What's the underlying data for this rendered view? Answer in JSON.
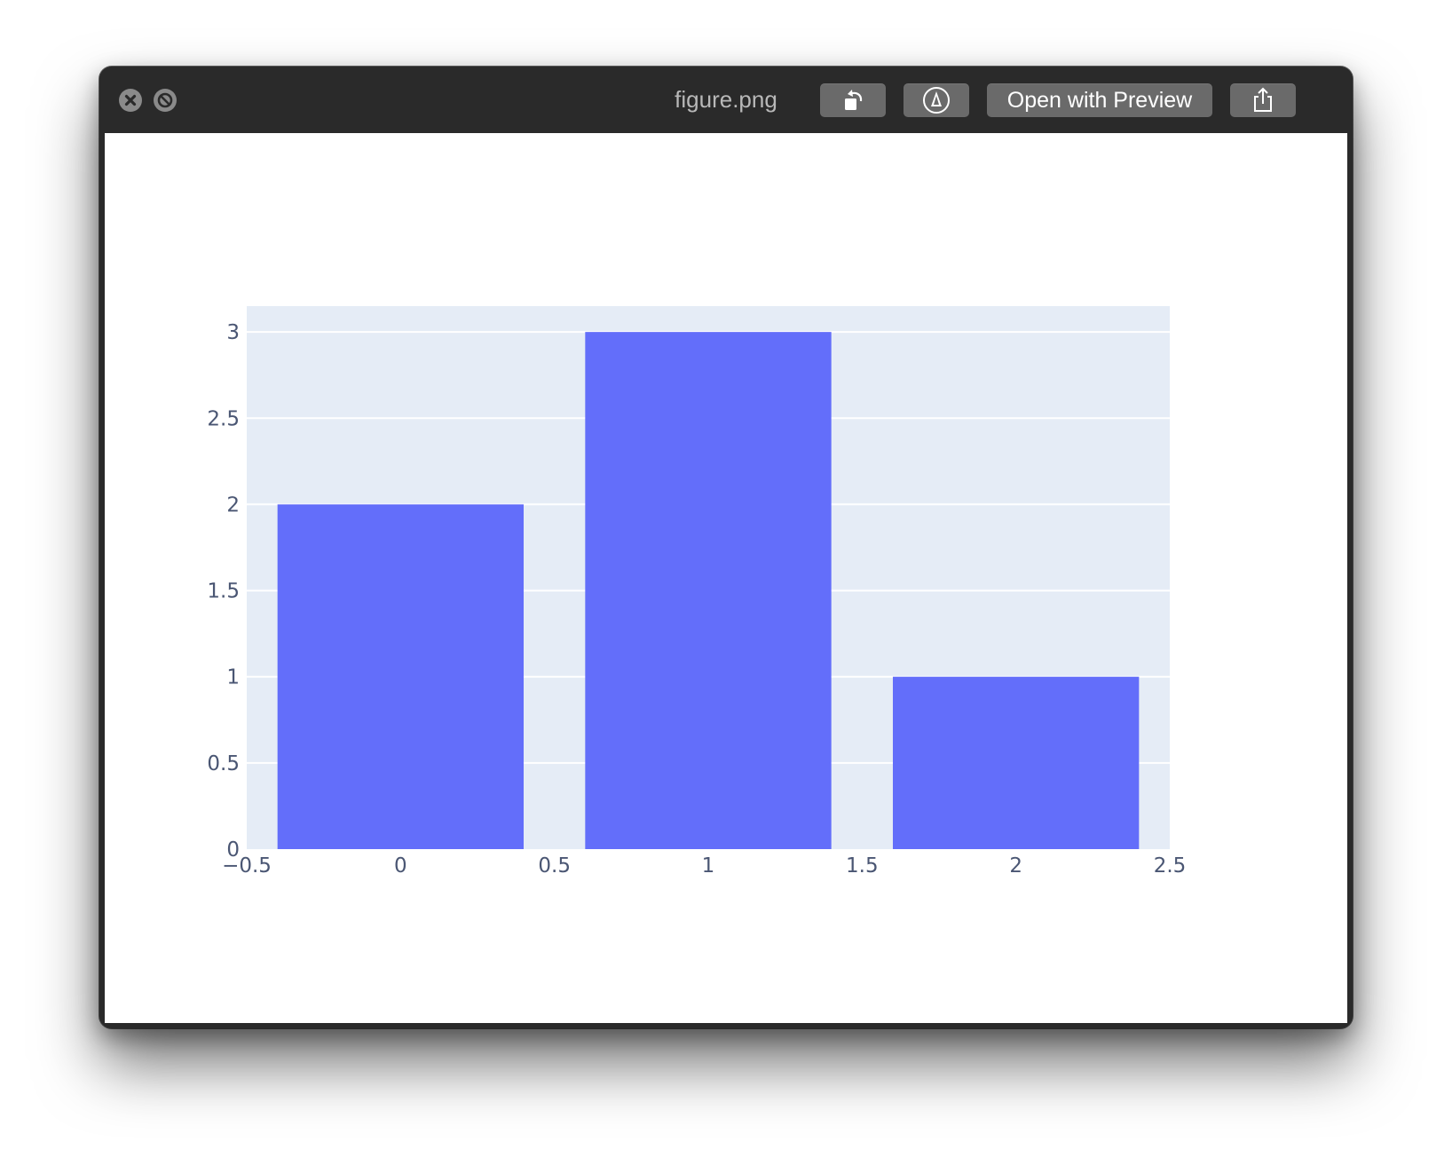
{
  "window": {
    "title": "figure.png",
    "buttons": {
      "open_with_label": "Open with Preview"
    },
    "icons": {
      "close": "close-icon",
      "fullscreen": "fullscreen-disabled-icon",
      "rotate": "rotate-left-icon",
      "markup": "markup-pen-icon",
      "share": "share-icon"
    }
  },
  "colors": {
    "bar": "#636efa",
    "plot_bg": "#e5ecf6",
    "grid": "#ffffff",
    "tick_text": "#4a5673",
    "titlebar": "#2a2a2a",
    "button": "#6a6a6a"
  },
  "chart_data": {
    "type": "bar",
    "x": [
      0,
      1,
      2
    ],
    "values": [
      2,
      3,
      1
    ],
    "title": "",
    "xlabel": "",
    "ylabel": "",
    "xlim": [
      -0.5,
      2.5
    ],
    "ylim": [
      0,
      3.15
    ],
    "xticks": [
      -0.5,
      0,
      0.5,
      1,
      1.5,
      2,
      2.5
    ],
    "xtick_labels": [
      "−0.5",
      "0",
      "0.5",
      "1",
      "1.5",
      "2",
      "2.5"
    ],
    "yticks": [
      0,
      0.5,
      1,
      1.5,
      2,
      2.5,
      3
    ],
    "ytick_labels": [
      "0",
      "0.5",
      "1",
      "1.5",
      "2",
      "2.5",
      "3"
    ],
    "bar_width": 0.8,
    "grid": true,
    "legend": "none"
  }
}
